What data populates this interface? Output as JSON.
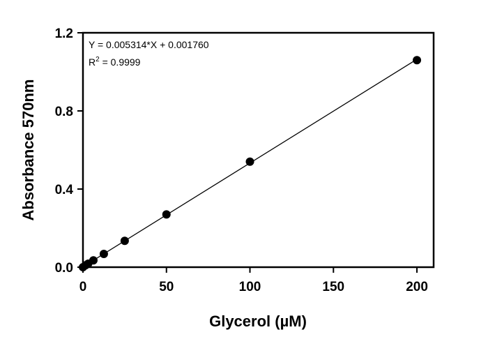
{
  "chart_data": {
    "type": "scatter",
    "xlabel": "Glycerol (µM)",
    "ylabel": "Absorbance 570nm",
    "xlim": [
      0,
      210
    ],
    "ylim": [
      0,
      1.2
    ],
    "x_ticks": [
      0,
      50,
      100,
      150,
      200
    ],
    "y_ticks": [
      0.0,
      0.4,
      0.8,
      1.2
    ],
    "x_tick_labels": [
      "0",
      "50",
      "100",
      "150",
      "200"
    ],
    "y_tick_labels": [
      "0.0",
      "0.4",
      "0.8",
      "1.2"
    ],
    "grid": false,
    "series": [
      {
        "x": [
          0,
          1.5625,
          3.125,
          6.25,
          12.5,
          25,
          50,
          100,
          200
        ],
        "y": [
          0.0,
          0.01,
          0.018,
          0.035,
          0.068,
          0.135,
          0.27,
          0.54,
          1.06
        ],
        "color": "#000000"
      }
    ],
    "fit_line": {
      "slope": 0.005314,
      "intercept": 0.00176,
      "x_range": [
        0,
        200
      ]
    },
    "annotations": {
      "equation": "Y = 0.005314*X + 0.001760",
      "r2_prefix": "R",
      "r2_superscript": "2",
      "r2_value": " = 0.9999"
    }
  }
}
